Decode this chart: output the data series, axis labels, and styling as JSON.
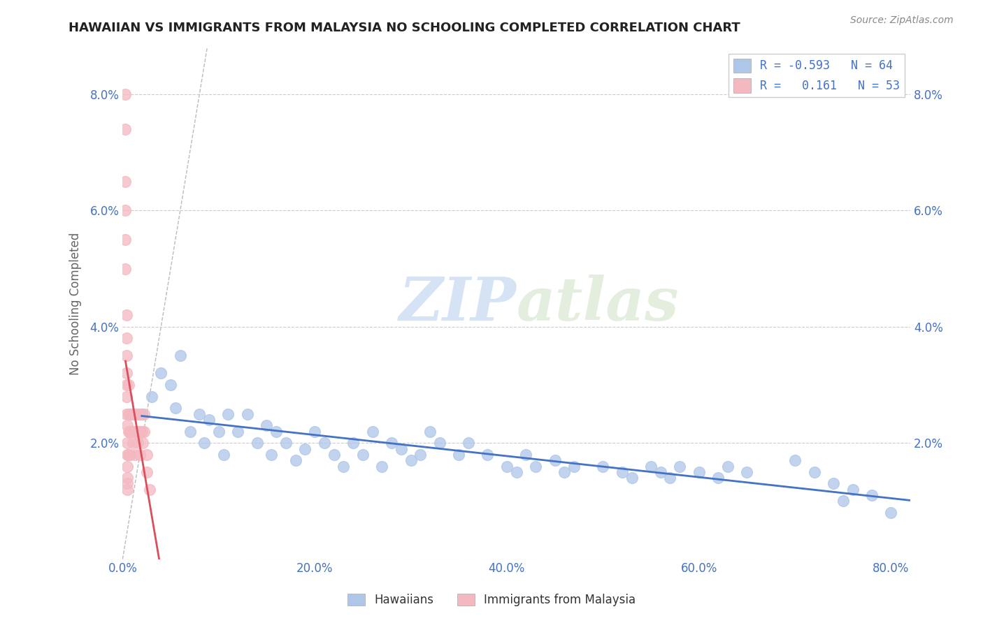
{
  "title": "HAWAIIAN VS IMMIGRANTS FROM MALAYSIA NO SCHOOLING COMPLETED CORRELATION CHART",
  "source_text": "Source: ZipAtlas.com",
  "ylabel": "No Schooling Completed",
  "watermark_zip": "ZIP",
  "watermark_atlas": "atlas",
  "hawaiians_R": -0.593,
  "hawaiians_N": 64,
  "malaysia_R": 0.161,
  "malaysia_N": 53,
  "xlim_min": 0.0,
  "xlim_max": 0.82,
  "ylim_min": 0.0,
  "ylim_max": 0.088,
  "xticks": [
    0.0,
    0.2,
    0.4,
    0.6,
    0.8
  ],
  "yticks": [
    0.0,
    0.02,
    0.04,
    0.06,
    0.08
  ],
  "xtick_labels": [
    "0.0%",
    "20.0%",
    "40.0%",
    "60.0%",
    "80.0%"
  ],
  "ytick_labels": [
    "",
    "2.0%",
    "4.0%",
    "6.0%",
    "8.0%"
  ],
  "hawaiian_color": "#aec6e8",
  "malaysia_color": "#f4b8c1",
  "hawaiian_line_color": "#4472c4",
  "malaysia_line_color": "#d94f5c",
  "blue_text_color": "#4472c4",
  "title_color": "#222222",
  "axis_label_color": "#666666",
  "grid_color": "#cccccc",
  "hx": [
    0.02,
    0.03,
    0.04,
    0.05,
    0.055,
    0.06,
    0.07,
    0.08,
    0.085,
    0.09,
    0.1,
    0.105,
    0.11,
    0.12,
    0.13,
    0.14,
    0.15,
    0.155,
    0.16,
    0.17,
    0.18,
    0.19,
    0.2,
    0.21,
    0.22,
    0.23,
    0.24,
    0.25,
    0.26,
    0.27,
    0.28,
    0.29,
    0.3,
    0.31,
    0.32,
    0.33,
    0.35,
    0.36,
    0.38,
    0.4,
    0.41,
    0.42,
    0.43,
    0.45,
    0.46,
    0.47,
    0.5,
    0.52,
    0.53,
    0.55,
    0.56,
    0.57,
    0.58,
    0.6,
    0.62,
    0.63,
    0.65,
    0.7,
    0.72,
    0.74,
    0.75,
    0.76,
    0.78,
    0.8
  ],
  "hy": [
    0.025,
    0.028,
    0.032,
    0.03,
    0.026,
    0.035,
    0.022,
    0.025,
    0.02,
    0.024,
    0.022,
    0.018,
    0.025,
    0.022,
    0.025,
    0.02,
    0.023,
    0.018,
    0.022,
    0.02,
    0.017,
    0.019,
    0.022,
    0.02,
    0.018,
    0.016,
    0.02,
    0.018,
    0.022,
    0.016,
    0.02,
    0.019,
    0.017,
    0.018,
    0.022,
    0.02,
    0.018,
    0.02,
    0.018,
    0.016,
    0.015,
    0.018,
    0.016,
    0.017,
    0.015,
    0.016,
    0.016,
    0.015,
    0.014,
    0.016,
    0.015,
    0.014,
    0.016,
    0.015,
    0.014,
    0.016,
    0.015,
    0.017,
    0.015,
    0.013,
    0.01,
    0.012,
    0.011,
    0.008
  ],
  "mx": [
    0.003,
    0.003,
    0.003,
    0.003,
    0.003,
    0.003,
    0.004,
    0.004,
    0.004,
    0.004,
    0.004,
    0.004,
    0.004,
    0.005,
    0.005,
    0.005,
    0.005,
    0.005,
    0.005,
    0.005,
    0.006,
    0.006,
    0.006,
    0.006,
    0.007,
    0.007,
    0.007,
    0.008,
    0.008,
    0.008,
    0.009,
    0.01,
    0.01,
    0.011,
    0.012,
    0.012,
    0.013,
    0.013,
    0.014,
    0.015,
    0.015,
    0.016,
    0.017,
    0.018,
    0.018,
    0.019,
    0.02,
    0.021,
    0.022,
    0.022,
    0.025,
    0.025,
    0.028
  ],
  "my": [
    0.08,
    0.074,
    0.065,
    0.06,
    0.055,
    0.05,
    0.042,
    0.038,
    0.035,
    0.032,
    0.03,
    0.028,
    0.025,
    0.023,
    0.02,
    0.018,
    0.016,
    0.014,
    0.013,
    0.012,
    0.03,
    0.025,
    0.022,
    0.018,
    0.025,
    0.022,
    0.018,
    0.025,
    0.022,
    0.018,
    0.022,
    0.025,
    0.022,
    0.02,
    0.025,
    0.022,
    0.022,
    0.018,
    0.022,
    0.025,
    0.022,
    0.02,
    0.025,
    0.022,
    0.018,
    0.022,
    0.022,
    0.02,
    0.025,
    0.022,
    0.018,
    0.015,
    0.012
  ]
}
